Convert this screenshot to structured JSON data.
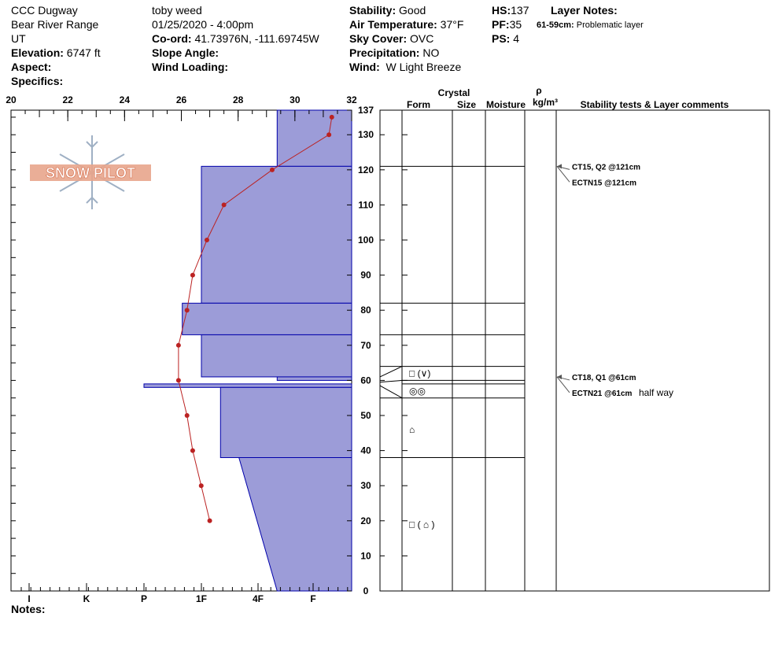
{
  "header": {
    "location": "CCC Dugway",
    "range": "Bear River Range",
    "state": "UT",
    "elevation_label": "Elevation:",
    "elevation": "6747 ft",
    "aspect_label": "Aspect:",
    "specifics_label": "Specifics:",
    "observer": "toby weed",
    "datetime": "01/25/2020 - 4:00pm",
    "coord_label": "Co-ord:",
    "coord": "41.73976N, -111.69745W",
    "slope_label": "Slope Angle:",
    "wind_loading_label": "Wind Loading:",
    "stability_label": "Stability:",
    "stability": "Good",
    "air_temp_label": "Air Temperature:",
    "air_temp": "37°F",
    "sky_label": "Sky Cover:",
    "sky": "OVC",
    "precip_label": "Precipitation:",
    "precip": "NO",
    "wind_label": "Wind:",
    "wind": "W Light Breeze",
    "hs_label": "HS:",
    "hs": "137",
    "pf_label": "PF:",
    "pf": "35",
    "ps_label": "PS:",
    "ps": "4",
    "layer_notes_label": "Layer Notes:",
    "layer_note_range": "61-59cm:",
    "layer_note_text": "Problematic layer"
  },
  "notes_label": "Notes:",
  "watermark": "SNOW PILOT",
  "table_headers": {
    "crystal": "Crystal",
    "form": "Form",
    "size": "Size",
    "moisture": "Moisture",
    "rho": "ρ",
    "density_unit": "kg/m³",
    "stability_tests": "Stability tests & Layer comments"
  },
  "chart_data": {
    "type": "snow-profile",
    "temperature_axis": {
      "min": 20,
      "max": 32,
      "ticks": [
        "20",
        "22",
        "24",
        "26",
        "28",
        "30",
        "32"
      ]
    },
    "depth_axis": {
      "min": 0,
      "max": 137,
      "ticks": [
        "0",
        "10",
        "20",
        "30",
        "40",
        "50",
        "60",
        "70",
        "80",
        "90",
        "100",
        "110",
        "120",
        "130",
        "137"
      ]
    },
    "hardness_axis": {
      "ticks": [
        "I",
        "K",
        "P",
        "1F",
        "4F",
        "F"
      ]
    },
    "temperature_profile": [
      {
        "depth": 135,
        "temp": 31.3
      },
      {
        "depth": 130,
        "temp": 31.2
      },
      {
        "depth": 120,
        "temp": 29.2
      },
      {
        "depth": 110,
        "temp": 27.5
      },
      {
        "depth": 100,
        "temp": 26.9
      },
      {
        "depth": 90,
        "temp": 26.4
      },
      {
        "depth": 80,
        "temp": 26.2
      },
      {
        "depth": 70,
        "temp": 25.9
      },
      {
        "depth": 60,
        "temp": 25.9
      },
      {
        "depth": 50,
        "temp": 26.2
      },
      {
        "depth": 40,
        "temp": 26.4
      },
      {
        "depth": 30,
        "temp": 26.7
      },
      {
        "depth": 20,
        "temp": 27.0
      }
    ],
    "layer_boundaries": [
      137,
      121,
      82,
      73,
      64,
      60,
      59,
      55,
      38,
      0
    ],
    "hardness_layers": [
      {
        "top": 137,
        "bottom": 121,
        "hardness": "4F+"
      },
      {
        "top": 121,
        "bottom": 82,
        "hardness": "1F"
      },
      {
        "top": 82,
        "bottom": 73,
        "hardness": "1F-"
      },
      {
        "top": 73,
        "bottom": 61,
        "hardness": "1F"
      },
      {
        "top": 61,
        "bottom": 60,
        "hardness": "4F+"
      },
      {
        "top": 59,
        "bottom": 58,
        "hardness": "P"
      },
      {
        "top": 58,
        "bottom": 38,
        "hardness": "1F+"
      },
      {
        "top": 38,
        "bottom": 0,
        "hardness": "4F- to 4F+"
      }
    ],
    "crystal_forms": [
      {
        "depth": 62,
        "symbol": "□ (∨)"
      },
      {
        "depth": 57,
        "symbol": "◎◎"
      },
      {
        "depth": 46,
        "symbol": "⌂"
      },
      {
        "depth": 19,
        "symbol": "□ ( ⌂ )"
      }
    ],
    "stability_tests": [
      {
        "depth": 121,
        "lines": [
          "CT15, Q2 @121cm",
          "ECTN15 @121cm"
        ]
      },
      {
        "depth": 61,
        "lines": [
          "CT18, Q1 @61cm",
          "ECTN21 @61cm"
        ],
        "comment": "half way"
      }
    ]
  },
  "colors": {
    "hardness_fill": "#9c9cd8",
    "hardness_stroke": "#0000aa",
    "temp_line": "#bb2222",
    "watermark": "#e07f5f"
  }
}
